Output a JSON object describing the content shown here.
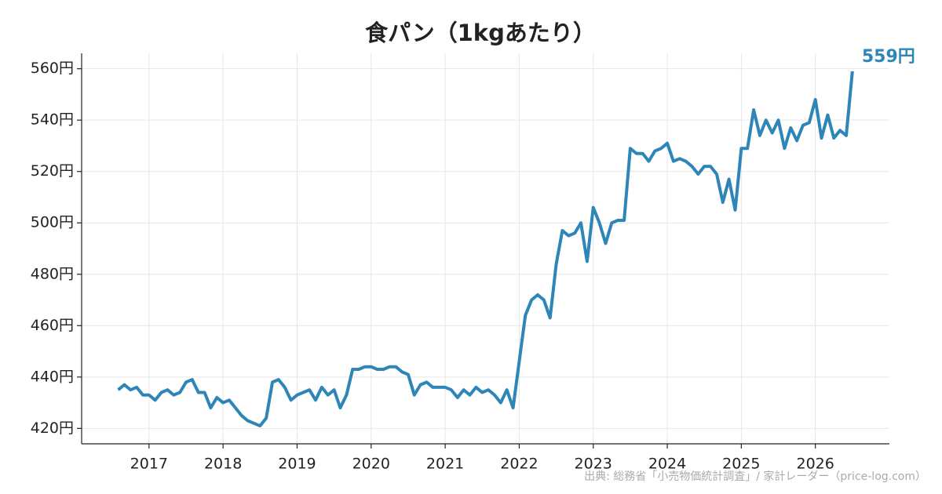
{
  "chart_data": {
    "type": "line",
    "title": "食パン（1kgあたり）",
    "source": "出典: 総務省「小売物価統計調査」/ 家計レーダー（price-log.com）",
    "color": "#2e86b8",
    "grid": true,
    "x": [
      2016.583,
      2016.667,
      2016.75,
      2016.833,
      2016.917,
      2017.0,
      2017.083,
      2017.167,
      2017.25,
      2017.333,
      2017.417,
      2017.5,
      2017.583,
      2017.667,
      2017.75,
      2017.833,
      2017.917,
      2018.0,
      2018.083,
      2018.167,
      2018.25,
      2018.333,
      2018.417,
      2018.5,
      2018.583,
      2018.667,
      2018.75,
      2018.833,
      2018.917,
      2019.0,
      2019.083,
      2019.167,
      2019.25,
      2019.333,
      2019.417,
      2019.5,
      2019.583,
      2019.667,
      2019.75,
      2019.833,
      2019.917,
      2020.0,
      2020.083,
      2020.167,
      2020.25,
      2020.333,
      2020.417,
      2020.5,
      2020.583,
      2020.667,
      2020.75,
      2020.833,
      2020.917,
      2021.0,
      2021.083,
      2021.167,
      2021.25,
      2021.333,
      2021.417,
      2021.5,
      2021.583,
      2021.667,
      2021.75,
      2021.833,
      2021.917,
      2022.0,
      2022.083,
      2022.167,
      2022.25,
      2022.333,
      2022.417,
      2022.5,
      2022.583,
      2022.667,
      2022.75,
      2022.833,
      2022.917,
      2023.0,
      2023.083,
      2023.167,
      2023.25,
      2023.333,
      2023.417,
      2023.5,
      2023.583,
      2023.667,
      2023.75,
      2023.833,
      2023.917,
      2024.0,
      2024.083,
      2024.167,
      2024.25,
      2024.333,
      2024.417,
      2024.5,
      2024.583,
      2024.667,
      2024.75,
      2024.833,
      2024.917,
      2025.0,
      2025.083,
      2025.167,
      2025.25,
      2025.333,
      2025.417,
      2025.5,
      2025.583,
      2025.667,
      2025.75,
      2025.833,
      2025.917,
      2026.0,
      2026.083,
      2026.167,
      2026.25,
      2026.333,
      2026.417,
      2026.5
    ],
    "values": [
      435,
      437,
      435,
      436,
      433,
      433,
      431,
      434,
      435,
      433,
      434,
      438,
      439,
      434,
      434,
      428,
      432,
      430,
      431,
      428,
      425,
      423,
      422,
      421,
      424,
      438,
      439,
      436,
      431,
      433,
      434,
      435,
      431,
      436,
      433,
      435,
      428,
      433,
      443,
      443,
      444,
      444,
      443,
      443,
      444,
      444,
      442,
      441,
      433,
      437,
      438,
      436,
      436,
      436,
      435,
      432,
      435,
      433,
      436,
      434,
      435,
      433,
      430,
      435,
      428,
      446,
      464,
      470,
      472,
      470,
      463,
      484,
      497,
      495,
      496,
      500,
      485,
      506,
      500,
      492,
      500,
      501,
      501,
      529,
      527,
      527,
      524,
      528,
      529,
      531,
      524,
      525,
      524,
      522,
      519,
      522,
      522,
      519,
      508,
      517,
      505,
      529,
      529,
      544,
      534,
      540,
      535,
      540,
      529,
      537,
      532,
      538,
      539,
      548,
      533,
      542,
      533,
      536,
      534,
      559
    ],
    "value_labels": [
      null,
      null,
      null,
      null,
      null,
      null,
      null,
      null,
      null,
      null,
      null,
      null,
      null,
      null,
      null,
      null,
      null,
      null,
      null,
      null,
      null,
      null,
      null,
      null,
      null,
      null,
      null,
      null,
      null,
      null,
      null,
      null,
      null,
      null,
      null,
      null,
      null,
      null,
      null,
      null,
      null,
      null,
      null,
      null,
      null,
      null,
      null,
      null,
      null,
      null,
      null,
      null,
      null,
      null,
      null,
      null,
      null,
      null,
      null,
      null,
      null,
      null,
      null,
      null,
      null,
      null,
      null,
      null,
      null,
      null,
      null,
      null,
      null,
      null,
      null,
      null,
      null,
      null,
      null,
      null,
      null,
      null,
      null,
      null,
      null,
      null,
      null,
      null,
      null,
      null,
      null,
      null,
      null,
      null,
      null,
      null,
      null,
      null,
      null,
      null,
      null,
      null,
      null,
      null,
      null,
      null,
      null,
      null,
      null,
      null,
      null,
      null,
      null,
      null,
      null,
      null,
      null,
      null,
      null,
      "559円"
    ],
    "xlim": [
      2016.09,
      2027.0
    ],
    "xticks": [
      2017,
      2018,
      2019,
      2020,
      2021,
      2022,
      2023,
      2024,
      2025,
      2026
    ],
    "ylim": [
      414,
      566
    ],
    "yticks": [
      {
        "value": 420,
        "label": "420円"
      },
      {
        "value": 440,
        "label": "440円"
      },
      {
        "value": 460,
        "label": "460円"
      },
      {
        "value": 480,
        "label": "480円"
      },
      {
        "value": 500,
        "label": "500円"
      },
      {
        "value": 520,
        "label": "520円"
      },
      {
        "value": 540,
        "label": "540円"
      },
      {
        "value": 560,
        "label": "560円"
      }
    ]
  }
}
